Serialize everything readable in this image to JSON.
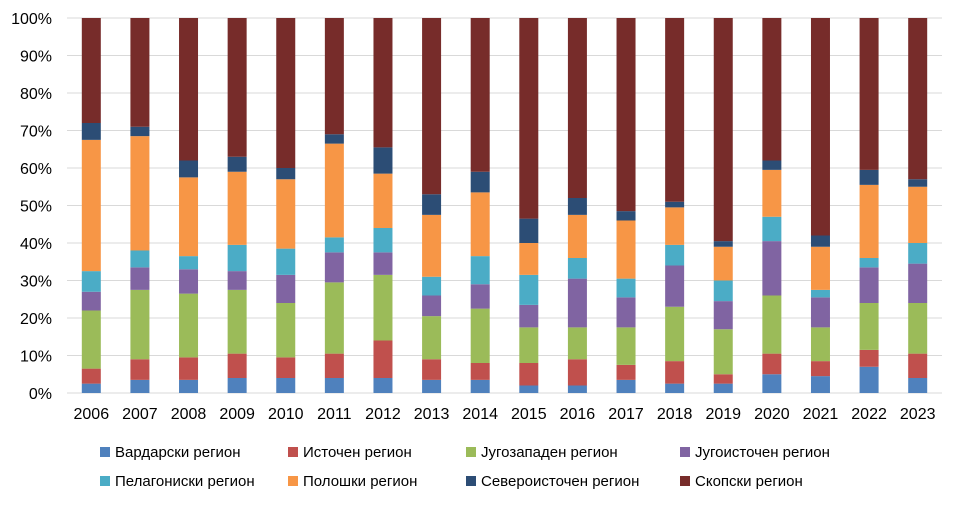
{
  "chart_data": {
    "type": "bar",
    "stacked": "percent",
    "title": "",
    "xlabel": "",
    "ylabel": "",
    "ylim": [
      0,
      100
    ],
    "y_ticks": [
      "0%",
      "10%",
      "20%",
      "30%",
      "40%",
      "50%",
      "60%",
      "70%",
      "80%",
      "90%",
      "100%"
    ],
    "grid": true,
    "legend_position": "bottom",
    "categories": [
      "2006",
      "2007",
      "2008",
      "2009",
      "2010",
      "2011",
      "2012",
      "2013",
      "2014",
      "2015",
      "2016",
      "2017",
      "2018",
      "2019",
      "2020",
      "2021",
      "2022",
      "2023"
    ],
    "series": [
      {
        "name": "Вардарски регион",
        "color": "#4F81BD",
        "values": [
          2.5,
          3.5,
          3.5,
          4,
          4,
          4,
          4,
          3.5,
          3.5,
          2,
          2,
          3.5,
          2.5,
          2.5,
          5,
          4.5,
          7,
          4
        ]
      },
      {
        "name": "Источен регион",
        "color": "#C0504D",
        "values": [
          4,
          5.5,
          6,
          6.5,
          5.5,
          6.5,
          10,
          5.5,
          4.5,
          6,
          7,
          4,
          6,
          2.5,
          5.5,
          4,
          4.5,
          6.5
        ]
      },
      {
        "name": "Југозападен регион",
        "color": "#9BBB59",
        "values": [
          15.5,
          18.5,
          17,
          17,
          14.5,
          19,
          17.5,
          11.5,
          14.5,
          9.5,
          8.5,
          10,
          14.5,
          12,
          15.5,
          9,
          12.5,
          13.5
        ]
      },
      {
        "name": "Југоисточен регион",
        "color": "#8064A2",
        "values": [
          5,
          6,
          6.5,
          5,
          7.5,
          8,
          6,
          5.5,
          6.5,
          6,
          13,
          8,
          11,
          7.5,
          14.5,
          8,
          9.5,
          10.5
        ]
      },
      {
        "name": "Пелагониски регион",
        "color": "#4BACC6",
        "values": [
          5.5,
          4.5,
          3.5,
          7,
          7,
          4,
          6.5,
          5,
          7.5,
          8,
          5.5,
          5,
          5.5,
          5.5,
          6.5,
          2,
          2.5,
          5.5
        ]
      },
      {
        "name": "Полошки регион",
        "color": "#F79646",
        "values": [
          35,
          30.5,
          21,
          19.5,
          18.5,
          25,
          14.5,
          16.5,
          17,
          8.5,
          11.5,
          15.5,
          10,
          9,
          12.5,
          11.5,
          19.5,
          15
        ]
      },
      {
        "name": "Североисточен регион",
        "color": "#2C4D75",
        "values": [
          4.5,
          2.5,
          4.5,
          4,
          3,
          2.5,
          7,
          5.5,
          5.5,
          6.5,
          4.5,
          2.5,
          1.5,
          1.5,
          2.5,
          3,
          4,
          2
        ]
      },
      {
        "name": "Скопски регион",
        "color": "#772C2A",
        "values": [
          28,
          29,
          38,
          37,
          40,
          31,
          34.5,
          47,
          41,
          53.5,
          48,
          51.5,
          49,
          59.5,
          38,
          58,
          40.5,
          43
        ]
      }
    ]
  }
}
